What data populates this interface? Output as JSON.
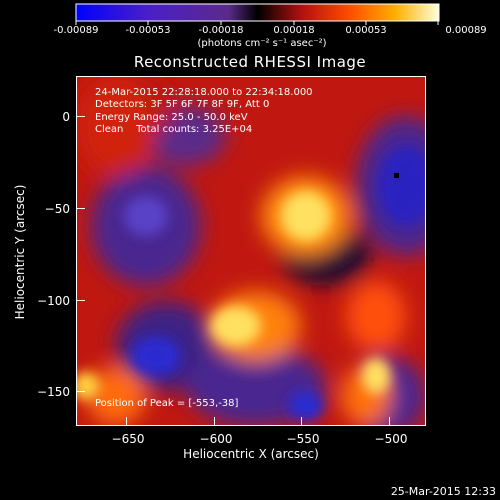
{
  "colorbar": {
    "ticks": [
      "-0.00089",
      "-0.00053",
      "-0.00018",
      "0.00018",
      "0.00053",
      "0.00089"
    ],
    "units": "(photons cm⁻² s⁻¹ asec⁻²)"
  },
  "title": "Reconstructed RHESSI Image",
  "info": {
    "time_range": "24-Mar-2015 22:28:18.000 to 22:34:18.000",
    "detectors": "Detectors: 3F 5F 6F 7F 8F 9F, Att 0",
    "energy": "Energy Range: 25.0 - 50.0 keV",
    "clean": "Clean    Total counts: 3.25E+04"
  },
  "peak_text": "Position of Peak = [-553,-38]",
  "x_axis": {
    "label": "Heliocentric X (arcsec)",
    "ticks": [
      "−650",
      "−600",
      "−550",
      "−500"
    ]
  },
  "y_axis": {
    "label": "Heliocentric Y (arcsec)",
    "ticks": [
      "0",
      "−50",
      "−100",
      "−150"
    ]
  },
  "timestamp": "25-Mar-2015 12:33",
  "colors": {
    "background": "#000000",
    "text": "#ffffff"
  }
}
